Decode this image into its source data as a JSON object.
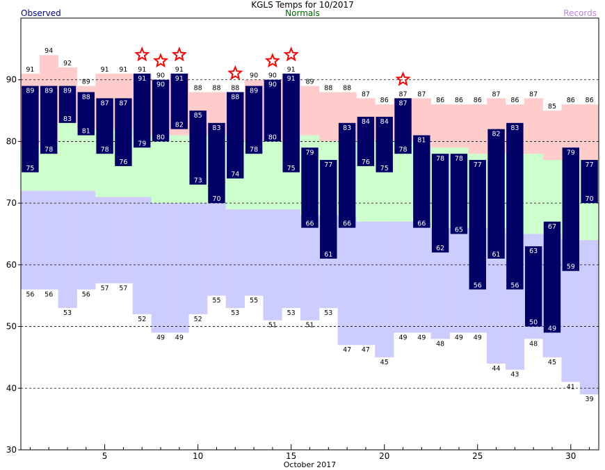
{
  "header": {
    "title": "KGLS Temps for 10/2017",
    "legend_observed": "Observed",
    "legend_normals": "Normals",
    "legend_records": "Records",
    "x_axis_label": "October 2017"
  },
  "colors": {
    "observed_bar": "#000066",
    "record_band": "#ffcccc",
    "normal_band": "#ccffcc",
    "below_normal_band": "#ccccff",
    "observed_text": "#000080",
    "normals_text": "#006400",
    "records_text": "#c080e0",
    "record_star": "#ff0000"
  },
  "chart_data": {
    "type": "bar",
    "title": "KGLS Temps for 10/2017",
    "xlabel": "October 2017",
    "ylabel": "",
    "ylim": [
      30,
      100
    ],
    "y_ticks": [
      30,
      40,
      50,
      60,
      70,
      80,
      90
    ],
    "x_ticks": [
      5,
      10,
      15,
      20,
      25,
      30
    ],
    "grid": "dashed horizontal at 40, 50, 60, 70, 80, 90",
    "days": [
      1,
      2,
      3,
      4,
      5,
      6,
      7,
      8,
      9,
      10,
      11,
      12,
      13,
      14,
      15,
      16,
      17,
      18,
      19,
      20,
      21,
      22,
      23,
      24,
      25,
      26,
      27,
      28,
      29,
      30,
      31
    ],
    "series": [
      {
        "name": "Observed",
        "values_high": [
          89,
          89,
          89,
          88,
          87,
          87,
          91,
          90,
          91,
          85,
          83,
          88,
          89,
          90,
          91,
          79,
          77,
          83,
          84,
          84,
          87,
          81,
          78,
          78,
          77,
          82,
          83,
          63,
          67,
          79,
          77
        ],
        "values_low": [
          75,
          78,
          83,
          81,
          78,
          76,
          79,
          80,
          82,
          73,
          70,
          74,
          78,
          80,
          75,
          66,
          61,
          66,
          76,
          75,
          78,
          66,
          62,
          65,
          56,
          61,
          56,
          50,
          49,
          59,
          70
        ]
      },
      {
        "name": "Records",
        "values_high": [
          91,
          94,
          92,
          89,
          91,
          91,
          91,
          90,
          91,
          88,
          88,
          88,
          90,
          90,
          91,
          89,
          88,
          88,
          87,
          86,
          87,
          87,
          86,
          86,
          86,
          87,
          86,
          87,
          85,
          86,
          86
        ],
        "values_low": [
          56,
          56,
          53,
          56,
          57,
          57,
          52,
          49,
          49,
          52,
          55,
          53,
          55,
          51,
          53,
          51,
          53,
          47,
          47,
          45,
          49,
          49,
          48,
          49,
          49,
          44,
          43,
          48,
          45,
          41,
          39
        ]
      },
      {
        "name": "Normals",
        "values_high": [
          79,
          80,
          83,
          82,
          82,
          82,
          81,
          81,
          81,
          81,
          81,
          80,
          80,
          80,
          80,
          81,
          80,
          80,
          80,
          80,
          80,
          80,
          79,
          79,
          78,
          78,
          78,
          78,
          77,
          77,
          77
        ],
        "values_low": [
          72,
          72,
          72,
          72,
          71,
          71,
          71,
          70,
          70,
          70,
          70,
          69,
          69,
          69,
          69,
          68,
          68,
          68,
          67,
          67,
          67,
          67,
          66,
          66,
          66,
          66,
          65,
          65,
          65,
          64,
          64
        ]
      }
    ],
    "record_high_days": [
      7,
      8,
      9,
      12,
      14,
      15,
      21
    ]
  }
}
